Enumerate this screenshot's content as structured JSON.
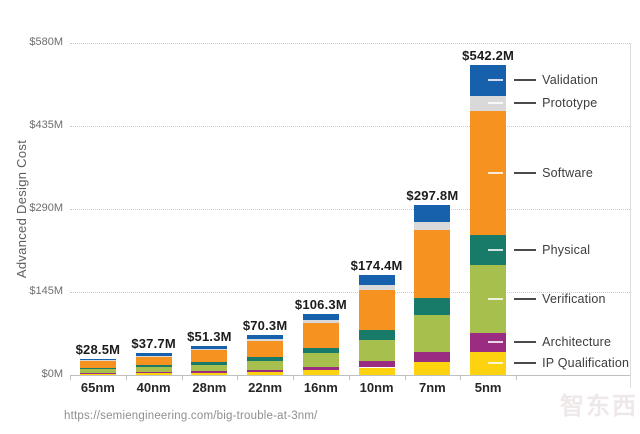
{
  "page": {
    "source_url": "https://semiengineering.com/big-trouble-at-3nm/",
    "watermark": "智东西",
    "watermark_sub": "· · ·   · · ·"
  },
  "chart_data": {
    "type": "bar",
    "stacked": true,
    "title": "",
    "xlabel": "",
    "ylabel": "Advanced Design Cost",
    "unit": "$M",
    "grid": true,
    "legend_position": "right",
    "ylim": [
      0,
      580
    ],
    "yticks": {
      "values": [
        0,
        145,
        290,
        435,
        580
      ],
      "labels": [
        "$0M",
        "$145M",
        "$290M",
        "$435M",
        "$580M"
      ]
    },
    "categories": [
      "65nm",
      "40nm",
      "28nm",
      "22nm",
      "16nm",
      "10nm",
      "7nm",
      "5nm"
    ],
    "totals": [
      28.5,
      37.7,
      51.3,
      70.3,
      106.3,
      174.4,
      297.8,
      542.2
    ],
    "total_labels": [
      "$28.5M",
      "$37.7M",
      "$51.3M",
      "$70.3M",
      "$106.3M",
      "$174.4M",
      "$297.8M",
      "$542.2M"
    ],
    "series_bottom_to_top": [
      {
        "name": "IP Qualification",
        "color": "#fdd20f",
        "values": [
          2.1,
          2.8,
          3.8,
          5.3,
          8.0,
          13.1,
          22.3,
          40.7
        ]
      },
      {
        "name": "Architecture",
        "color": "#9a2d81",
        "values": [
          1.7,
          2.3,
          3.1,
          4.2,
          6.4,
          10.5,
          17.9,
          32.7
        ]
      },
      {
        "name": "Verification",
        "color": "#a7bf4d",
        "values": [
          6.2,
          8.3,
          11.2,
          15.4,
          23.3,
          38.2,
          65.3,
          118.8
        ]
      },
      {
        "name": "Physical",
        "color": "#187a68",
        "values": [
          2.8,
          3.7,
          5.0,
          6.8,
          10.3,
          16.9,
          28.9,
          52.4
        ]
      },
      {
        "name": "Software",
        "color": "#f6921f",
        "values": [
          11.4,
          15.1,
          20.5,
          28.1,
          42.5,
          69.8,
          119.1,
          217.0
        ]
      },
      {
        "name": "Prototype",
        "color": "#d9d9d9",
        "values": [
          1.3,
          1.8,
          2.4,
          3.3,
          5.0,
          8.2,
          14.0,
          25.7
        ]
      },
      {
        "name": "Validation",
        "color": "#1760ab",
        "values": [
          3.0,
          3.7,
          5.3,
          7.2,
          10.8,
          17.7,
          30.3,
          54.9
        ]
      }
    ],
    "legend_top_to_bottom": [
      "Validation",
      "Prototype",
      "Software",
      "Physical",
      "Verification",
      "Architecture",
      "IP Qualification"
    ],
    "colors": {
      "grid": "#cbcbcb",
      "axis": "#c0c0c0",
      "leader_line": "#4a4a4a"
    }
  }
}
